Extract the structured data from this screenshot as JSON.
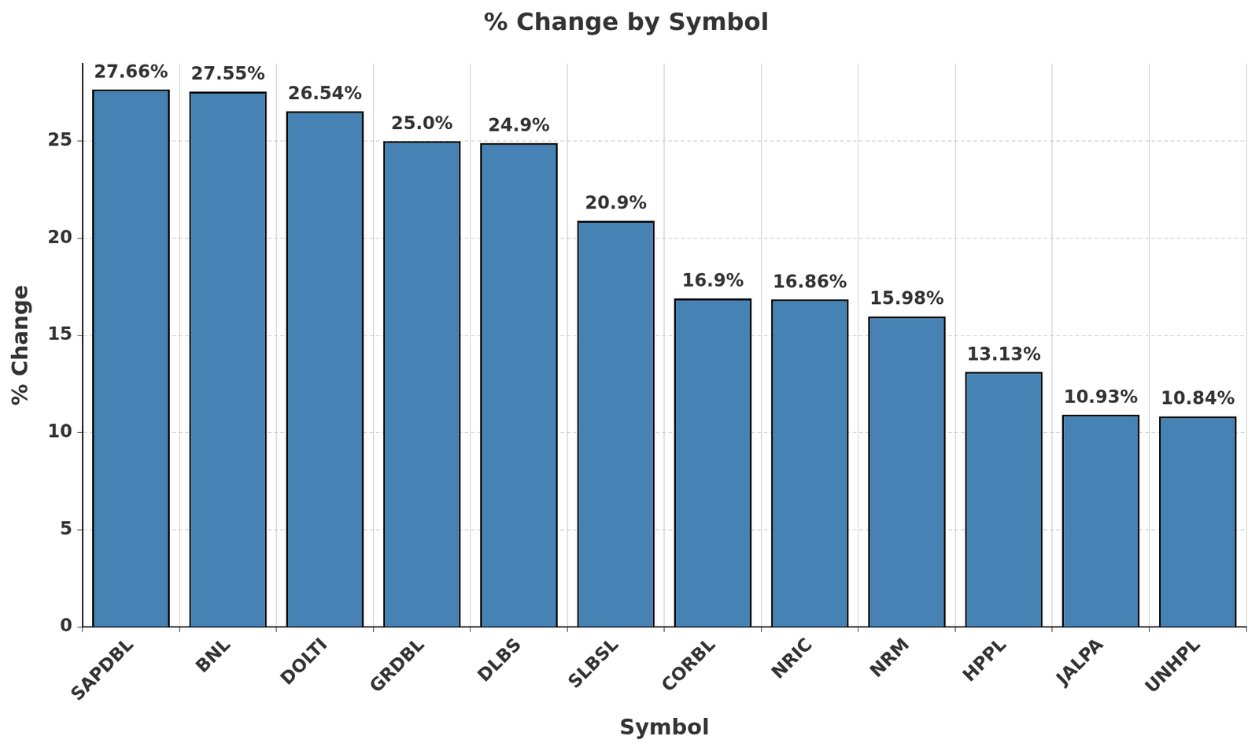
{
  "chart_data": {
    "type": "bar",
    "title": "% Change by Symbol",
    "x_label": "Symbol",
    "y_label": "% Change",
    "categories": [
      "SAPDBL",
      "BNL",
      "DOLTI",
      "GRDBL",
      "DLBS",
      "SLBSL",
      "CORBL",
      "NRIC",
      "NRM",
      "HPPL",
      "JALPA",
      "UNHPL"
    ],
    "values": [
      27.66,
      27.55,
      26.54,
      25.0,
      24.9,
      20.9,
      16.9,
      16.86,
      15.98,
      13.13,
      10.93,
      10.84
    ],
    "value_labels": [
      "27.66%",
      "27.55%",
      "26.54%",
      "25.0%",
      "24.9%",
      "20.9%",
      "16.9%",
      "16.86%",
      "15.98%",
      "13.13%",
      "10.93%",
      "10.84%"
    ],
    "color": "#4682b4",
    "ylim": [
      0,
      29
    ],
    "yticks": [
      0,
      5,
      10,
      15,
      20,
      25
    ],
    "grid": true,
    "data_labels": true
  }
}
